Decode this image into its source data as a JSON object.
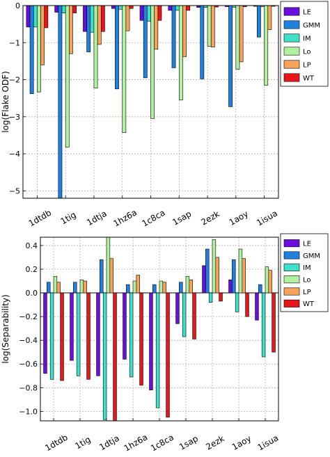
{
  "colors": {
    "LE": "#6a0dde",
    "GMM": "#1f80e0",
    "IM": "#3fe0c8",
    "Lo": "#b0f0a0",
    "LP": "#f7a35c",
    "WT": "#e8161a"
  },
  "chart_data": [
    {
      "type": "bar",
      "title": "",
      "xlabel": "",
      "ylabel": "log(Flake ODF)",
      "ylim": [
        -5.2,
        0
      ],
      "yticks": [
        0,
        -1,
        -2,
        -3,
        -4,
        -5
      ],
      "ytick_labels": [
        "0",
        "−1",
        "−2",
        "−3",
        "−4",
        "−5"
      ],
      "grid": true,
      "legend_position": "top-right",
      "categories": [
        "1dtdb",
        "1tig",
        "1dtja",
        "1hz6a",
        "1c8ca",
        "1sap",
        "2ezk",
        "1aoy",
        "1isua"
      ],
      "series": [
        {
          "name": "LE",
          "values": [
            -0.58,
            -0.18,
            -0.7,
            -0.08,
            -0.4,
            -0.13,
            -0.05,
            -0.03,
            -0.02
          ]
        },
        {
          "name": "GMM",
          "values": [
            -2.38,
            -5.2,
            -1.25,
            -2.25,
            -1.95,
            -1.68,
            -1.98,
            -2.73,
            -0.85
          ]
        },
        {
          "name": "IM",
          "values": [
            -0.58,
            -0.2,
            -0.72,
            -0.1,
            -0.42,
            -0.13,
            -0.05,
            -0.05,
            -0.03
          ]
        },
        {
          "name": "Lo",
          "values": [
            -2.33,
            -3.82,
            -2.23,
            -3.43,
            -3.05,
            -2.55,
            -1.1,
            -1.72,
            -2.15
          ]
        },
        {
          "name": "LP",
          "values": [
            -1.6,
            -1.3,
            -1.05,
            -0.68,
            -1.18,
            -1.38,
            -1.12,
            -1.52,
            -0.65
          ]
        },
        {
          "name": "WT",
          "values": [
            -0.6,
            -0.2,
            -0.7,
            -0.08,
            -0.4,
            -0.13,
            -0.04,
            -0.03,
            -0.02
          ]
        }
      ]
    },
    {
      "type": "bar",
      "title": "",
      "xlabel": "",
      "ylabel": "log(Separability)",
      "ylim": [
        -1.08,
        0.47
      ],
      "yticks": [
        0.4,
        0.2,
        0.0,
        -0.2,
        -0.4,
        -0.6,
        -0.8,
        -1.0
      ],
      "ytick_labels": [
        "0.4",
        "0.2",
        "0.0",
        "−0.2",
        "−0.4",
        "−0.6",
        "−0.8",
        "−1.0"
      ],
      "grid": true,
      "legend_position": "top-right",
      "categories": [
        "1dtdb",
        "1tig",
        "1dtja",
        "1hz6a",
        "1c8ca",
        "1sap",
        "2ezk",
        "1aoy",
        "1isua"
      ],
      "series": [
        {
          "name": "LE",
          "values": [
            -0.68,
            -0.57,
            -0.7,
            -0.56,
            -0.82,
            -0.26,
            0.23,
            0.11,
            -0.23
          ]
        },
        {
          "name": "GMM",
          "values": [
            0.09,
            0.09,
            0.28,
            0.07,
            0.07,
            0.09,
            0.37,
            0.28,
            0.07
          ]
        },
        {
          "name": "IM",
          "values": [
            -0.73,
            -0.7,
            -1.07,
            -0.71,
            -0.97,
            -0.37,
            -0.08,
            -0.16,
            -0.54
          ]
        },
        {
          "name": "Lo",
          "values": [
            0.14,
            0.11,
            0.47,
            0.1,
            0.1,
            0.14,
            0.45,
            0.37,
            0.22
          ]
        },
        {
          "name": "LP",
          "values": [
            0.09,
            0.1,
            0.29,
            0.15,
            0.09,
            0.11,
            0.3,
            0.29,
            0.19
          ]
        },
        {
          "name": "WT",
          "values": [
            -0.74,
            -0.73,
            -1.08,
            -0.78,
            -1.05,
            -0.39,
            -0.07,
            -0.2,
            -0.5
          ]
        }
      ]
    }
  ]
}
